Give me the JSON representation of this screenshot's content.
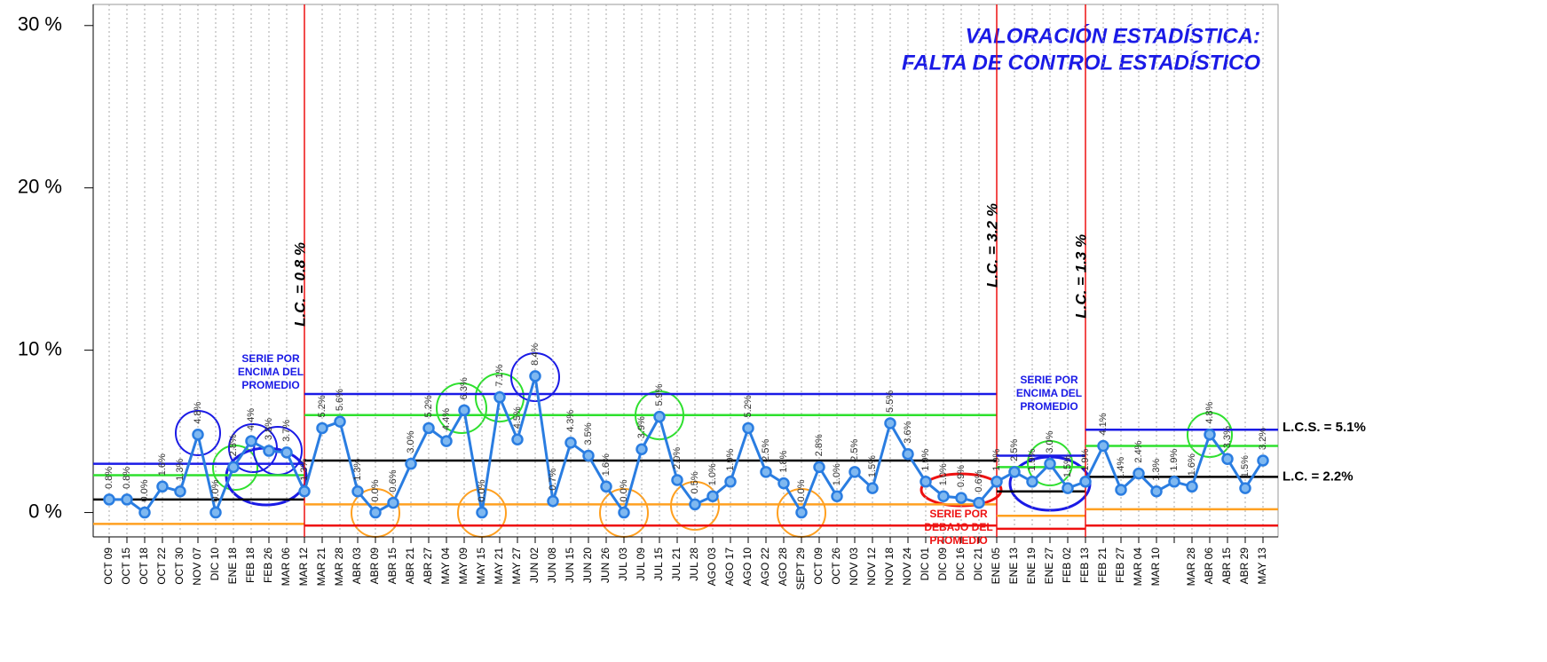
{
  "chart_data": {
    "type": "line",
    "title": "VALORACIÓN ESTADÍSTICA:",
    "subtitle": "FALTA DE CONTROL ESTADÍSTICO",
    "categories": [
      "OCT 09",
      "OCT 15",
      "OCT 18",
      "OCT 22",
      "OCT 30",
      "NOV 07",
      "DIC 10",
      "ENE 18",
      "FEB 18",
      "FEB 26",
      "MAR 06",
      "MAR 12",
      "MAR 21",
      "MAR 28",
      "ABR 03",
      "ABR 09",
      "ABR 15",
      "ABR 21",
      "ABR 27",
      "MAY 04",
      "MAY 09",
      "MAY 15",
      "MAY 21",
      "MAY 27",
      "JUN 02",
      "JUN 08",
      "JUN 15",
      "JUN 20",
      "JUN 26",
      "JUL 03",
      "JUL 09",
      "JUL 15",
      "JUL 21",
      "JUL 28",
      "AGO 03",
      "AGO 17",
      "AGO 10",
      "AGO 22",
      "AGO 28",
      "SEPT 29",
      "OCT 09",
      "OCT 26",
      "NOV 03",
      "NOV 12",
      "NOV 18",
      "NOV 24",
      "DIC 01",
      "DIC 09",
      "DIC 16",
      "DIC 21",
      "ENE 05",
      "ENE 13",
      "ENE 19",
      "ENE 27",
      "FEB 02",
      "FEB 13",
      "FEB 21",
      "FEB 27",
      "MAR 04",
      "MAR 10",
      null,
      "MAR 28",
      "ABR 06",
      "ABR 15",
      "ABR 29",
      "MAY 13"
    ],
    "values": [
      0.8,
      0.8,
      0.0,
      1.6,
      1.3,
      4.8,
      0.0,
      2.8,
      4.4,
      3.8,
      3.7,
      1.3,
      5.2,
      5.6,
      1.3,
      0.0,
      0.6,
      3.0,
      5.2,
      4.4,
      6.3,
      0.0,
      7.1,
      4.5,
      8.4,
      0.7,
      4.3,
      3.5,
      1.6,
      0.0,
      3.9,
      5.9,
      2.0,
      0.5,
      1.0,
      1.9,
      5.2,
      2.5,
      1.8,
      0.0,
      2.8,
      1.0,
      2.5,
      1.5,
      5.5,
      3.6,
      1.9,
      1.0,
      0.9,
      0.6,
      1.9,
      2.5,
      1.9,
      3.0,
      1.5,
      1.9,
      4.1,
      1.4,
      2.4,
      1.3,
      1.9,
      1.6,
      4.8,
      3.3,
      1.5,
      3.2
    ],
    "value_labels": [
      "0.8%",
      "0.8%",
      "0.0%",
      "1.6%",
      "1.3%",
      "4.8%",
      "0.0%",
      "2.8%",
      "4.4%",
      "3.8%",
      "3.7%",
      "1.3%",
      "5.2%",
      "5.6%",
      "1.3%",
      "0.0%",
      "0.6%",
      "3.0%",
      "5.2%",
      "4.4%",
      "6.3%",
      "0.0%",
      "7.1%",
      "4.5%",
      "8.4%",
      "0.7%",
      "4.3%",
      "3.5%",
      "1.6%",
      "0.0%",
      "3.9%",
      "5.9%",
      "2.0%",
      "0.5%",
      "1.0%",
      "1.9%",
      "5.2%",
      "2.5%",
      "1.8%",
      "0.0%",
      "2.8%",
      "1.0%",
      "2.5%",
      "1.5%",
      "5.5%",
      "3.6%",
      "1.9%",
      "1.0%",
      "0.9%",
      "0.6%",
      "1.9%",
      "2.5%",
      "1.9%",
      "3.0%",
      "1.5%",
      "1.9%",
      "4.1%",
      "1.4%",
      "2.4%",
      "1.3%",
      "1.9%",
      "1.6%",
      "4.8%",
      "3.3%",
      "1.5%",
      "3.2%"
    ],
    "color": "#2a7de1",
    "ylim": [
      -1.5,
      31.3
    ],
    "yticks": [
      {
        "value": 0,
        "label": "0 %"
      },
      {
        "value": 10,
        "label": "10 %"
      },
      {
        "value": 20,
        "label": "20 %"
      },
      {
        "value": 30,
        "label": "30 %"
      }
    ],
    "limit_colors": {
      "lcs": "#1a1ae6",
      "upper": "#2ee02e",
      "lc": "#000000",
      "lower": "#ffa020",
      "lci": "#ee1111"
    },
    "break_color": "#ee1111",
    "segments": [
      {
        "start": 0,
        "end": 11,
        "lcs": 3.0,
        "upper": 2.3,
        "lc": 0.8,
        "lower": -0.7,
        "lci": null,
        "label": "L.C. = 0.8 %"
      },
      {
        "start": 11,
        "end": 50,
        "lcs": 7.3,
        "upper": 6.0,
        "lc": 3.2,
        "lower": 0.5,
        "lci": -0.8,
        "label": "L.C. = 3.2 %"
      },
      {
        "start": 50,
        "end": 55,
        "lcs": 3.5,
        "upper": 2.8,
        "lc": 1.3,
        "lower": -0.2,
        "lci": -1.0,
        "label": "L.C. = 1.3 %"
      },
      {
        "start": 55,
        "end": 65,
        "lcs": 5.1,
        "upper": 4.1,
        "lc": 2.2,
        "lower": 0.2,
        "lci": -0.8,
        "lcs_label": "L.C.S. = 5.1%",
        "lc_label": "L.C. = 2.2%"
      }
    ],
    "annotations": [
      {
        "lines": [
          "SERIE POR",
          "ENCIMA DEL",
          "PROMEDIO"
        ],
        "color": "#1a1ae6"
      },
      {
        "lines": [
          "SERIE POR",
          "ENCIMA DEL",
          "PROMEDIO"
        ],
        "color": "#1a1ae6"
      },
      {
        "lines": [
          "SERIE POR",
          "DEBAJO DEL",
          "PROMEDIO"
        ],
        "color": "#ee1111"
      }
    ]
  }
}
